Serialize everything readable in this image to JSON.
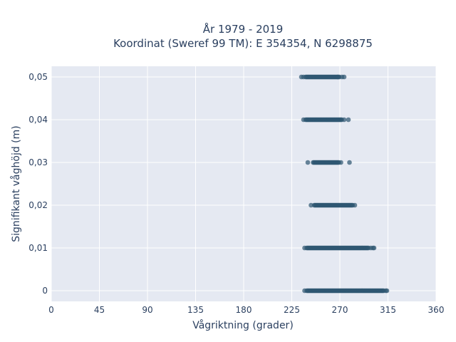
{
  "chart_data": {
    "type": "scatter",
    "title_line1": "År 1979 - 2019",
    "title_line2": "Koordinat (Sweref 99 TM): E 354354, N 6298875",
    "xlabel": "Vågriktning (grader)",
    "ylabel": "Signifikant våghöjd (m)",
    "xlim": [
      0,
      360
    ],
    "ylim": [
      -0.0025,
      0.0525
    ],
    "x_ticks": [
      0,
      45,
      90,
      135,
      180,
      225,
      270,
      315,
      360
    ],
    "x_tick_labels": [
      "0",
      "45",
      "90",
      "135",
      "180",
      "225",
      "270",
      "315",
      "360"
    ],
    "y_ticks": [
      0,
      0.01,
      0.02,
      0.03,
      0.04,
      0.05
    ],
    "y_tick_labels": [
      "0",
      "0,01",
      "0,02",
      "0,03",
      "0,04",
      "0,05"
    ],
    "grid": true,
    "marker_color": "#2f5872",
    "background_color": "#e5e9f2",
    "bands": [
      {
        "y": 0.05,
        "dense_from": 238,
        "dense_to": 270,
        "outliers": [
          234,
          236,
          268,
          272,
          274
        ]
      },
      {
        "y": 0.04,
        "dense_from": 238,
        "dense_to": 272,
        "outliers": [
          236,
          274,
          278
        ]
      },
      {
        "y": 0.03,
        "dense_from": 245,
        "dense_to": 269,
        "outliers": [
          240,
          271,
          279
        ]
      },
      {
        "y": 0.02,
        "dense_from": 246,
        "dense_to": 282,
        "outliers": [
          243,
          284
        ]
      },
      {
        "y": 0.01,
        "dense_from": 239,
        "dense_to": 297,
        "outliers": [
          237,
          299,
          301,
          302
        ]
      },
      {
        "y": 0.0,
        "dense_from": 239,
        "dense_to": 311,
        "outliers": [
          237,
          313,
          314
        ]
      }
    ]
  }
}
